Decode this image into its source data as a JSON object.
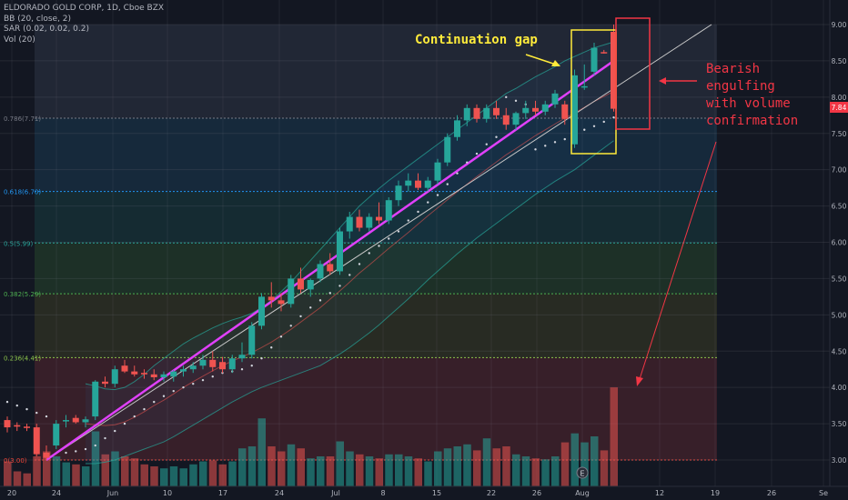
{
  "legend": {
    "title": "ELDORADO GOLD CORP, 1D, Cboe BZX",
    "bb": "BB (20, close, 2)",
    "sar": "SAR (0.02, 0.02, 0.2)",
    "vol": "Vol (20)"
  },
  "annotations": {
    "gap_label": "Continuation gap",
    "engulf_line1": "Bearish",
    "engulf_line2": "engulfing",
    "engulf_line3": "with volume",
    "engulf_line4": "confirmation"
  },
  "price_badge": "7.84",
  "earnings_marker": "E",
  "colors": {
    "bg": "#131722",
    "up": "#26a69a",
    "down": "#ef5350",
    "trend": "#e040fb",
    "annotation_yellow": "#ffeb3b",
    "annotation_red": "#f23645"
  },
  "chart_data": {
    "type": "candlestick",
    "title": "ELDORADO GOLD CORP, 1D, Cboe BZX",
    "ylim": [
      2.85,
      9.15
    ],
    "y_ticks": [
      "3.00",
      "3.50",
      "4.00",
      "4.50",
      "5.00",
      "5.50",
      "6.00",
      "6.50",
      "7.00",
      "7.50",
      "8.00",
      "8.50",
      "9.00"
    ],
    "x_ticks": [
      "20",
      "24",
      "Jun",
      "10",
      "17",
      "24",
      "Jul",
      "8",
      "15",
      "22",
      "26",
      "Aug",
      "12",
      "19",
      "26",
      "Se"
    ],
    "fib_levels": [
      {
        "label": "0.786(7.71)",
        "value": 7.71
      },
      {
        "label": "0.618(6.70)",
        "value": 6.7
      },
      {
        "label": "0.5(5.99)",
        "value": 5.99
      },
      {
        "label": "0.382(5.29)",
        "value": 5.29
      },
      {
        "label": "0.236(4.41)",
        "value": 4.41
      },
      {
        "label": "0(3.00)",
        "value": 3.0
      }
    ],
    "candles": [
      {
        "o": 3.55,
        "h": 3.6,
        "l": 3.38,
        "c": 3.45,
        "v": 0.25
      },
      {
        "o": 3.48,
        "h": 3.52,
        "l": 3.4,
        "c": 3.46,
        "v": 0.15
      },
      {
        "o": 3.46,
        "h": 3.5,
        "l": 3.4,
        "c": 3.45,
        "v": 0.13
      },
      {
        "o": 3.45,
        "h": 3.5,
        "l": 3.05,
        "c": 3.08,
        "v": 0.3
      },
      {
        "o": 3.1,
        "h": 3.2,
        "l": 3.0,
        "c": 3.03,
        "v": 0.35
      },
      {
        "o": 3.2,
        "h": 3.55,
        "l": 3.15,
        "c": 3.5,
        "v": 0.3
      },
      {
        "o": 3.55,
        "h": 3.62,
        "l": 3.45,
        "c": 3.55,
        "v": 0.24
      },
      {
        "o": 3.58,
        "h": 3.62,
        "l": 3.5,
        "c": 3.52,
        "v": 0.22
      },
      {
        "o": 3.52,
        "h": 3.6,
        "l": 3.45,
        "c": 3.56,
        "v": 0.2
      },
      {
        "o": 3.6,
        "h": 4.1,
        "l": 3.55,
        "c": 4.08,
        "v": 0.55
      },
      {
        "o": 4.08,
        "h": 4.15,
        "l": 4.0,
        "c": 4.05,
        "v": 0.32
      },
      {
        "o": 4.05,
        "h": 4.3,
        "l": 4.0,
        "c": 4.25,
        "v": 0.35
      },
      {
        "o": 4.3,
        "h": 4.38,
        "l": 4.2,
        "c": 4.22,
        "v": 0.3
      },
      {
        "o": 4.22,
        "h": 4.3,
        "l": 4.15,
        "c": 4.18,
        "v": 0.28
      },
      {
        "o": 4.2,
        "h": 4.25,
        "l": 4.12,
        "c": 4.18,
        "v": 0.22
      },
      {
        "o": 4.18,
        "h": 4.25,
        "l": 4.1,
        "c": 4.14,
        "v": 0.2
      },
      {
        "o": 4.14,
        "h": 4.22,
        "l": 4.08,
        "c": 4.18,
        "v": 0.18
      },
      {
        "o": 4.15,
        "h": 4.24,
        "l": 4.08,
        "c": 4.22,
        "v": 0.2
      },
      {
        "o": 4.22,
        "h": 4.3,
        "l": 4.15,
        "c": 4.25,
        "v": 0.18
      },
      {
        "o": 4.25,
        "h": 4.35,
        "l": 4.2,
        "c": 4.3,
        "v": 0.22
      },
      {
        "o": 4.3,
        "h": 4.45,
        "l": 4.25,
        "c": 4.38,
        "v": 0.25
      },
      {
        "o": 4.38,
        "h": 4.5,
        "l": 4.22,
        "c": 4.28,
        "v": 0.26
      },
      {
        "o": 4.35,
        "h": 4.42,
        "l": 4.2,
        "c": 4.25,
        "v": 0.22
      },
      {
        "o": 4.25,
        "h": 4.45,
        "l": 4.2,
        "c": 4.4,
        "v": 0.25
      },
      {
        "o": 4.4,
        "h": 4.62,
        "l": 4.35,
        "c": 4.45,
        "v": 0.38
      },
      {
        "o": 4.45,
        "h": 4.9,
        "l": 4.4,
        "c": 4.85,
        "v": 0.4
      },
      {
        "o": 4.85,
        "h": 5.3,
        "l": 4.8,
        "c": 5.25,
        "v": 0.68
      },
      {
        "o": 5.25,
        "h": 5.45,
        "l": 5.1,
        "c": 5.2,
        "v": 0.4
      },
      {
        "o": 5.2,
        "h": 5.3,
        "l": 5.05,
        "c": 5.15,
        "v": 0.35
      },
      {
        "o": 5.15,
        "h": 5.55,
        "l": 5.1,
        "c": 5.5,
        "v": 0.42
      },
      {
        "o": 5.5,
        "h": 5.65,
        "l": 5.3,
        "c": 5.35,
        "v": 0.38
      },
      {
        "o": 5.35,
        "h": 5.5,
        "l": 5.25,
        "c": 5.48,
        "v": 0.28
      },
      {
        "o": 5.5,
        "h": 5.75,
        "l": 5.45,
        "c": 5.7,
        "v": 0.3
      },
      {
        "o": 5.7,
        "h": 5.85,
        "l": 5.55,
        "c": 5.6,
        "v": 0.3
      },
      {
        "o": 5.6,
        "h": 6.2,
        "l": 5.55,
        "c": 6.15,
        "v": 0.45
      },
      {
        "o": 6.15,
        "h": 6.42,
        "l": 6.05,
        "c": 6.35,
        "v": 0.35
      },
      {
        "o": 6.35,
        "h": 6.45,
        "l": 6.15,
        "c": 6.2,
        "v": 0.32
      },
      {
        "o": 6.2,
        "h": 6.4,
        "l": 6.15,
        "c": 6.35,
        "v": 0.3
      },
      {
        "o": 6.35,
        "h": 6.55,
        "l": 6.25,
        "c": 6.3,
        "v": 0.28
      },
      {
        "o": 6.3,
        "h": 6.62,
        "l": 6.25,
        "c": 6.58,
        "v": 0.32
      },
      {
        "o": 6.58,
        "h": 6.85,
        "l": 6.5,
        "c": 6.78,
        "v": 0.32
      },
      {
        "o": 6.78,
        "h": 6.95,
        "l": 6.7,
        "c": 6.85,
        "v": 0.3
      },
      {
        "o": 6.85,
        "h": 6.95,
        "l": 6.72,
        "c": 6.75,
        "v": 0.28
      },
      {
        "o": 6.75,
        "h": 6.9,
        "l": 6.7,
        "c": 6.85,
        "v": 0.25
      },
      {
        "o": 6.85,
        "h": 7.15,
        "l": 6.8,
        "c": 7.1,
        "v": 0.35
      },
      {
        "o": 7.1,
        "h": 7.5,
        "l": 7.05,
        "c": 7.45,
        "v": 0.38
      },
      {
        "o": 7.45,
        "h": 7.75,
        "l": 7.4,
        "c": 7.68,
        "v": 0.4
      },
      {
        "o": 7.68,
        "h": 7.9,
        "l": 7.6,
        "c": 7.85,
        "v": 0.42
      },
      {
        "o": 7.85,
        "h": 7.9,
        "l": 7.65,
        "c": 7.7,
        "v": 0.36
      },
      {
        "o": 7.7,
        "h": 7.9,
        "l": 7.65,
        "c": 7.85,
        "v": 0.48
      },
      {
        "o": 7.85,
        "h": 7.95,
        "l": 7.7,
        "c": 7.75,
        "v": 0.38
      },
      {
        "o": 7.75,
        "h": 7.85,
        "l": 7.55,
        "c": 7.62,
        "v": 0.4
      },
      {
        "o": 7.62,
        "h": 7.8,
        "l": 7.55,
        "c": 7.78,
        "v": 0.32
      },
      {
        "o": 7.78,
        "h": 7.95,
        "l": 7.7,
        "c": 7.85,
        "v": 0.3
      },
      {
        "o": 7.85,
        "h": 7.95,
        "l": 7.75,
        "c": 7.8,
        "v": 0.28
      },
      {
        "o": 7.8,
        "h": 7.95,
        "l": 7.75,
        "c": 7.9,
        "v": 0.27
      },
      {
        "o": 7.9,
        "h": 8.1,
        "l": 7.85,
        "c": 8.05,
        "v": 0.3
      },
      {
        "o": 7.9,
        "h": 7.95,
        "l": 7.62,
        "c": 7.7,
        "v": 0.44
      },
      {
        "o": 7.35,
        "h": 8.38,
        "l": 7.3,
        "c": 8.3,
        "v": 0.53
      },
      {
        "o": 8.15,
        "h": 8.45,
        "l": 8.1,
        "c": 8.15,
        "v": 0.44
      },
      {
        "o": 8.35,
        "h": 8.75,
        "l": 8.3,
        "c": 8.68,
        "v": 0.5
      },
      {
        "o": 8.62,
        "h": 8.65,
        "l": 8.6,
        "c": 8.61,
        "v": 0.36
      },
      {
        "o": 8.9,
        "h": 9.0,
        "l": 7.8,
        "c": 7.84,
        "v": 0.99
      }
    ],
    "bollinger": {
      "upper": [
        4.05,
        4.02,
        3.98,
        3.97,
        4.0,
        4.08,
        4.18,
        4.3,
        4.4,
        4.5,
        4.6,
        4.68,
        4.75,
        4.82,
        4.88,
        4.93,
        4.97,
        5.02,
        5.1,
        5.2,
        5.32,
        5.45,
        5.6,
        5.75,
        5.9,
        6.05,
        6.2,
        6.35,
        6.5,
        6.62,
        6.74,
        6.85,
        6.95,
        7.05,
        7.15,
        7.25,
        7.35,
        7.45,
        7.55,
        7.65,
        7.75,
        7.85,
        7.95,
        8.05,
        8.12,
        8.2,
        8.28,
        8.35,
        8.42,
        8.5,
        8.56,
        8.62,
        8.68,
        8.72,
        8.76
      ],
      "lower": [
        2.95,
        2.95,
        2.97,
        3.0,
        3.05,
        3.1,
        3.15,
        3.2,
        3.25,
        3.32,
        3.4,
        3.48,
        3.56,
        3.64,
        3.72,
        3.8,
        3.87,
        3.94,
        4.0,
        4.05,
        4.1,
        4.15,
        4.2,
        4.25,
        4.3,
        4.38,
        4.46,
        4.55,
        4.65,
        4.75,
        4.86,
        4.98,
        5.1,
        5.22,
        5.35,
        5.48,
        5.6,
        5.72,
        5.84,
        5.95,
        6.06,
        6.16,
        6.26,
        6.36,
        6.46,
        6.56,
        6.66,
        6.75,
        6.84,
        6.92,
        7.0,
        7.1,
        7.2,
        7.3,
        7.4
      ],
      "start_index": 8
    },
    "sar": [
      3.8,
      3.75,
      3.7,
      3.65,
      3.6,
      3.25,
      3.1,
      3.12,
      3.15,
      3.2,
      3.3,
      3.4,
      3.5,
      3.6,
      3.7,
      3.8,
      3.88,
      3.95,
      4.0,
      4.05,
      4.1,
      4.15,
      4.2,
      4.22,
      4.25,
      4.3,
      4.4,
      4.55,
      4.7,
      4.85,
      4.98,
      5.1,
      5.2,
      5.3,
      5.4,
      5.55,
      5.7,
      5.85,
      5.95,
      6.05,
      6.15,
      6.3,
      6.42,
      6.55,
      6.65,
      6.8,
      6.95,
      7.1,
      7.22,
      7.35,
      7.45,
      8.0,
      7.95,
      7.9,
      7.28,
      7.33,
      7.38,
      7.42,
      7.48,
      7.55,
      7.6,
      7.66,
      7.72
    ],
    "trendline": {
      "x": [
        4,
        62
      ],
      "y": [
        3.0,
        8.5
      ]
    },
    "channel_line": {
      "x": [
        4,
        72
      ],
      "y": [
        3.0,
        9.0
      ]
    }
  }
}
